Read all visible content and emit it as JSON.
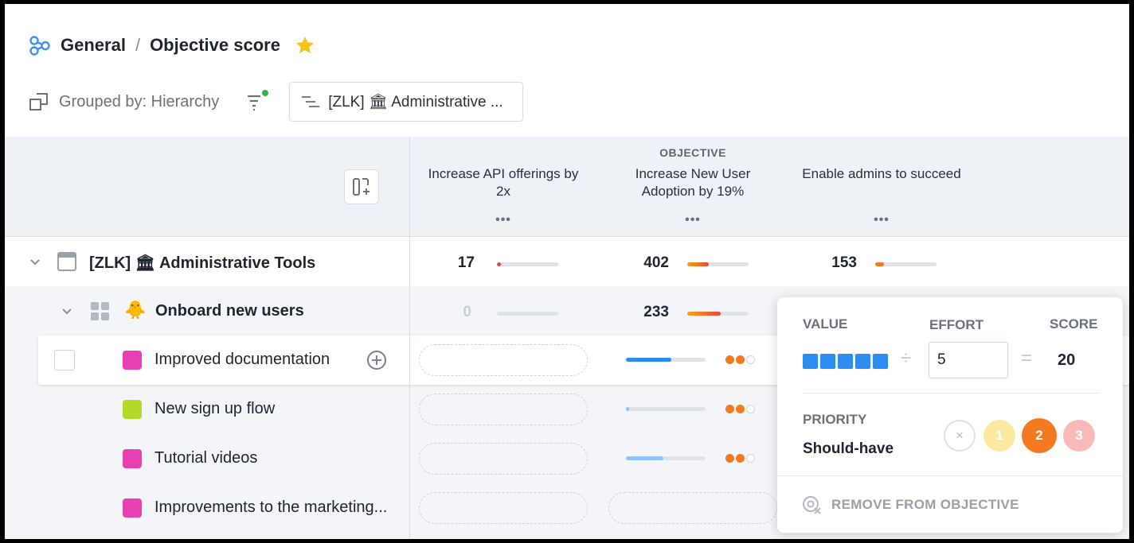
{
  "breadcrumb": {
    "workspace": "General",
    "separator": "/",
    "page": "Objective score"
  },
  "toolbar": {
    "grouped_by": "Grouped by: Hierarchy",
    "scope_chip": "[ZLK] 🏛 Administrative ..."
  },
  "table": {
    "objective_header": "OBJECTIVE",
    "objectives": [
      {
        "label": "Increase API offerings by 2x",
        "more": "•••"
      },
      {
        "label": "Increase New User Adoption by 19%",
        "more": "•••"
      },
      {
        "label": "Enable admins to succeed",
        "more": "•••"
      }
    ],
    "rows": {
      "zlk": {
        "label": "[ZLK] 🏛 Administrative Tools",
        "scores": [
          {
            "value": "17",
            "fill": 0.06,
            "color": "#f0433a"
          },
          {
            "value": "402",
            "fill": 0.35,
            "color": "#f47a1f"
          },
          {
            "value": "153",
            "fill": 0.14,
            "color": "#f47a1f"
          }
        ]
      },
      "onboard": {
        "label": "Onboard new users",
        "emoji": "🐥",
        "scores": [
          {
            "value": "0",
            "fill": 0.0,
            "color": "#dfe3e8"
          },
          {
            "value": "233",
            "fill": 0.55,
            "color": "#f0433a"
          }
        ]
      },
      "items": [
        {
          "label": "Improved documentation",
          "color": "#e83fb5",
          "value_fill": 0.57,
          "value_color": "#2d8cf0",
          "priority_dots": 2
        },
        {
          "label": "New sign up flow",
          "color": "#b3d92b",
          "value_fill": 0.04,
          "value_color": "#8ec4f7",
          "priority_dots": 2
        },
        {
          "label": "Tutorial videos",
          "color": "#e83fb5",
          "value_fill": 0.47,
          "value_color": "#8ec4f7",
          "priority_dots": 2
        },
        {
          "label": "Improvements to the marketing...",
          "color": "#e83fb5",
          "value_fill": 0.0,
          "value_color": "#8ec4f7",
          "priority_dots": 0
        }
      ]
    }
  },
  "popover": {
    "value_label": "VALUE",
    "effort_label": "EFFORT",
    "score_label": "SCORE",
    "value_blocks": 5,
    "divide_symbol": "÷",
    "equals_symbol": "=",
    "effort_value": "5",
    "score_value": "20",
    "priority_label": "PRIORITY",
    "priority_value": "Should-have",
    "priority_options": {
      "clear": "×",
      "p1": "1",
      "p2": "2",
      "p3": "3"
    },
    "remove_label": "REMOVE FROM OBJECTIVE"
  },
  "colors": {
    "accent_blue": "#2d8cf0",
    "priority_orange": "#f47a1f",
    "star": "#f7c21b"
  }
}
